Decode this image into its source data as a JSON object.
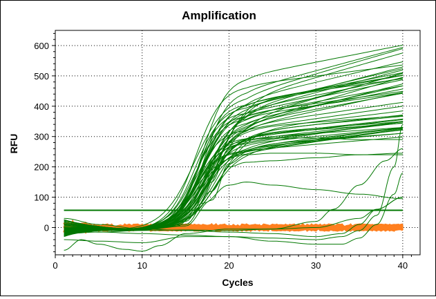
{
  "chart_data": {
    "type": "line",
    "title": "Amplification",
    "xlabel": "Cycles",
    "ylabel": "RFU",
    "xlim": [
      0,
      42
    ],
    "ylim": [
      -90,
      650
    ],
    "xticks": [
      0,
      10,
      20,
      30,
      40
    ],
    "yticks": [
      0,
      100,
      200,
      300,
      400,
      500,
      600
    ],
    "grid": true,
    "legend": "none",
    "colors": {
      "amplified": "#007700",
      "threshold": "#007700",
      "negative": "#ff7f1f"
    },
    "threshold": 57,
    "sigmoid_plateaus": [
      620,
      590,
      575,
      560,
      550,
      545,
      540,
      535,
      530,
      528,
      522,
      515,
      510,
      505,
      500,
      497,
      492,
      488,
      485,
      480,
      476,
      472,
      468,
      465,
      462,
      458,
      455,
      450,
      446,
      442,
      438,
      435,
      430,
      426,
      422,
      418,
      415,
      410,
      405,
      400,
      398,
      395,
      392,
      388,
      385,
      382,
      378,
      375,
      372,
      370
    ],
    "low_curves": [
      {
        "x": [
          1,
          5,
          10,
          15,
          18,
          20,
          22,
          25,
          30,
          35,
          40
        ],
        "y": [
          10,
          0,
          -5,
          10,
          120,
          200,
          215,
          220,
          230,
          240,
          245
        ]
      },
      {
        "x": [
          1,
          5,
          10,
          15,
          18,
          20,
          22,
          25,
          30,
          35,
          40
        ],
        "y": [
          5,
          -3,
          -8,
          5,
          90,
          210,
          240,
          245,
          245,
          240,
          240
        ]
      },
      {
        "x": [
          1,
          5,
          10,
          14,
          17,
          20,
          22,
          25,
          30,
          35,
          40
        ],
        "y": [
          0,
          -10,
          -8,
          5,
          80,
          140,
          150,
          140,
          125,
          110,
          95
        ]
      },
      {
        "x": [
          1,
          5,
          10,
          15,
          18,
          20,
          22,
          25,
          30,
          35,
          40
        ],
        "y": [
          20,
          0,
          -8,
          20,
          150,
          260,
          290,
          295,
          295,
          290,
          290
        ]
      }
    ],
    "late_curves": [
      {
        "x": [
          1,
          5,
          10,
          15,
          20,
          25,
          30,
          33,
          35,
          37,
          39,
          40
        ],
        "y": [
          -10,
          -15,
          -20,
          -25,
          -30,
          -35,
          -40,
          -30,
          -10,
          40,
          200,
          340
        ]
      },
      {
        "x": [
          1,
          5,
          10,
          15,
          20,
          25,
          30,
          33,
          35,
          37,
          39,
          40
        ],
        "y": [
          -40,
          -45,
          -50,
          -30,
          -30,
          -45,
          -55,
          -55,
          -35,
          10,
          110,
          180
        ]
      },
      {
        "x": [
          1,
          3,
          5,
          8,
          10,
          12,
          15,
          20,
          25,
          30,
          35,
          37,
          40
        ],
        "y": [
          -75,
          -40,
          -55,
          -72,
          -78,
          -60,
          -20,
          -5,
          -5,
          0,
          30,
          60,
          100
        ]
      },
      {
        "x": [
          1,
          5,
          10,
          15,
          20,
          25,
          30,
          32,
          35,
          38,
          40
        ],
        "y": [
          -20,
          -15,
          -10,
          -8,
          -10,
          -5,
          20,
          60,
          140,
          220,
          260
        ]
      },
      {
        "x": [
          1,
          5,
          10,
          15,
          20,
          25,
          30,
          33,
          35,
          37,
          40
        ],
        "y": [
          30,
          10,
          -5,
          -10,
          -15,
          -20,
          -30,
          -20,
          10,
          60,
          100
        ]
      }
    ],
    "negative_band": {
      "center": 0,
      "amplitude": 10
    }
  }
}
